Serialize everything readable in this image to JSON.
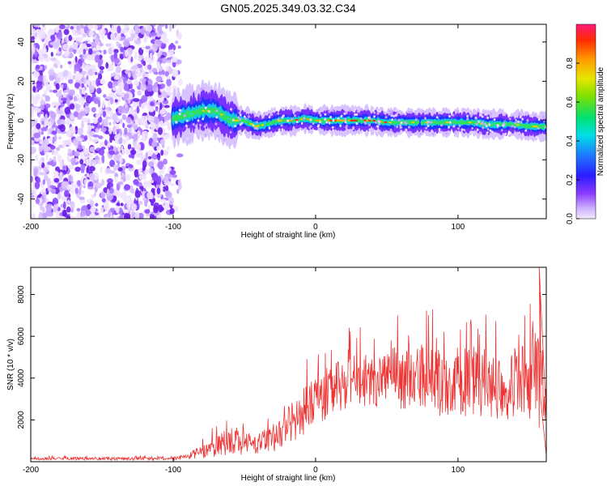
{
  "title": "GN05.2025.349.03.32.C34",
  "colors": {
    "snr_line": "#ee3333",
    "background": "#ffffff",
    "axes": "#000000"
  },
  "chart_data": [
    {
      "type": "heatmap",
      "name": "spectrogram",
      "xlabel": "Height of straight line (km)",
      "ylabel": "Frequency (Hz)",
      "xlim": [
        -200,
        162
      ],
      "ylim": [
        -50,
        49
      ],
      "xticks": [
        -200,
        -100,
        0,
        100
      ],
      "yticks": [
        -40,
        -20,
        0,
        20,
        40
      ],
      "noise_region_x": [
        -200,
        -95
      ],
      "signal_ridge": {
        "x": [
          -100,
          -90,
          -80,
          -70,
          -60,
          -50,
          -42,
          -35,
          -25,
          -15,
          -8,
          0,
          10,
          20,
          30,
          40,
          50,
          60,
          70,
          80,
          90,
          100,
          110,
          120,
          130,
          140,
          150,
          160
        ],
        "freq_hz": [
          1,
          3,
          5,
          5,
          0,
          0,
          -3,
          -2,
          0,
          0,
          1,
          0,
          0,
          0,
          0,
          0,
          -1,
          -1,
          -1,
          -1,
          -1,
          -1,
          -1,
          -2,
          -2,
          -2,
          -3,
          -3
        ]
      },
      "colorbar": {
        "label": "Normalized spectral amplitude",
        "range": [
          0,
          1
        ],
        "ticks": [
          0.0,
          0.2,
          0.4,
          0.6,
          0.8
        ]
      }
    },
    {
      "type": "line",
      "name": "snr",
      "xlabel": "Height of straight line (km)",
      "ylabel": "SNR (10 * v/v)",
      "xlim": [
        -200,
        162
      ],
      "ylim": [
        0,
        9300
      ],
      "xticks": [
        -200,
        -100,
        0,
        100
      ],
      "yticks": [
        2000,
        4000,
        6000,
        8000
      ],
      "envelope": {
        "x": [
          -200,
          -100,
          -90,
          -80,
          -70,
          -60,
          -50,
          -40,
          -30,
          -20,
          -10,
          0,
          10,
          20,
          30,
          40,
          50,
          60,
          70,
          80,
          90,
          100,
          110,
          120,
          130,
          140,
          150,
          155,
          160,
          162
        ],
        "mean": [
          150,
          150,
          250,
          450,
          750,
          1050,
          900,
          850,
          1150,
          1700,
          2300,
          2900,
          3400,
          3700,
          3850,
          4000,
          4050,
          4000,
          4000,
          3900,
          3800,
          3850,
          3850,
          3700,
          3600,
          3800,
          3800,
          4300,
          3500,
          1500
        ],
        "spread": [
          70,
          80,
          150,
          300,
          500,
          800,
          600,
          500,
          700,
          900,
          1100,
          1200,
          1300,
          1300,
          1300,
          1400,
          1400,
          1500,
          1600,
          1700,
          1700,
          1700,
          1700,
          1700,
          1700,
          1700,
          1800,
          2600,
          2500,
          1500
        ]
      }
    }
  ]
}
